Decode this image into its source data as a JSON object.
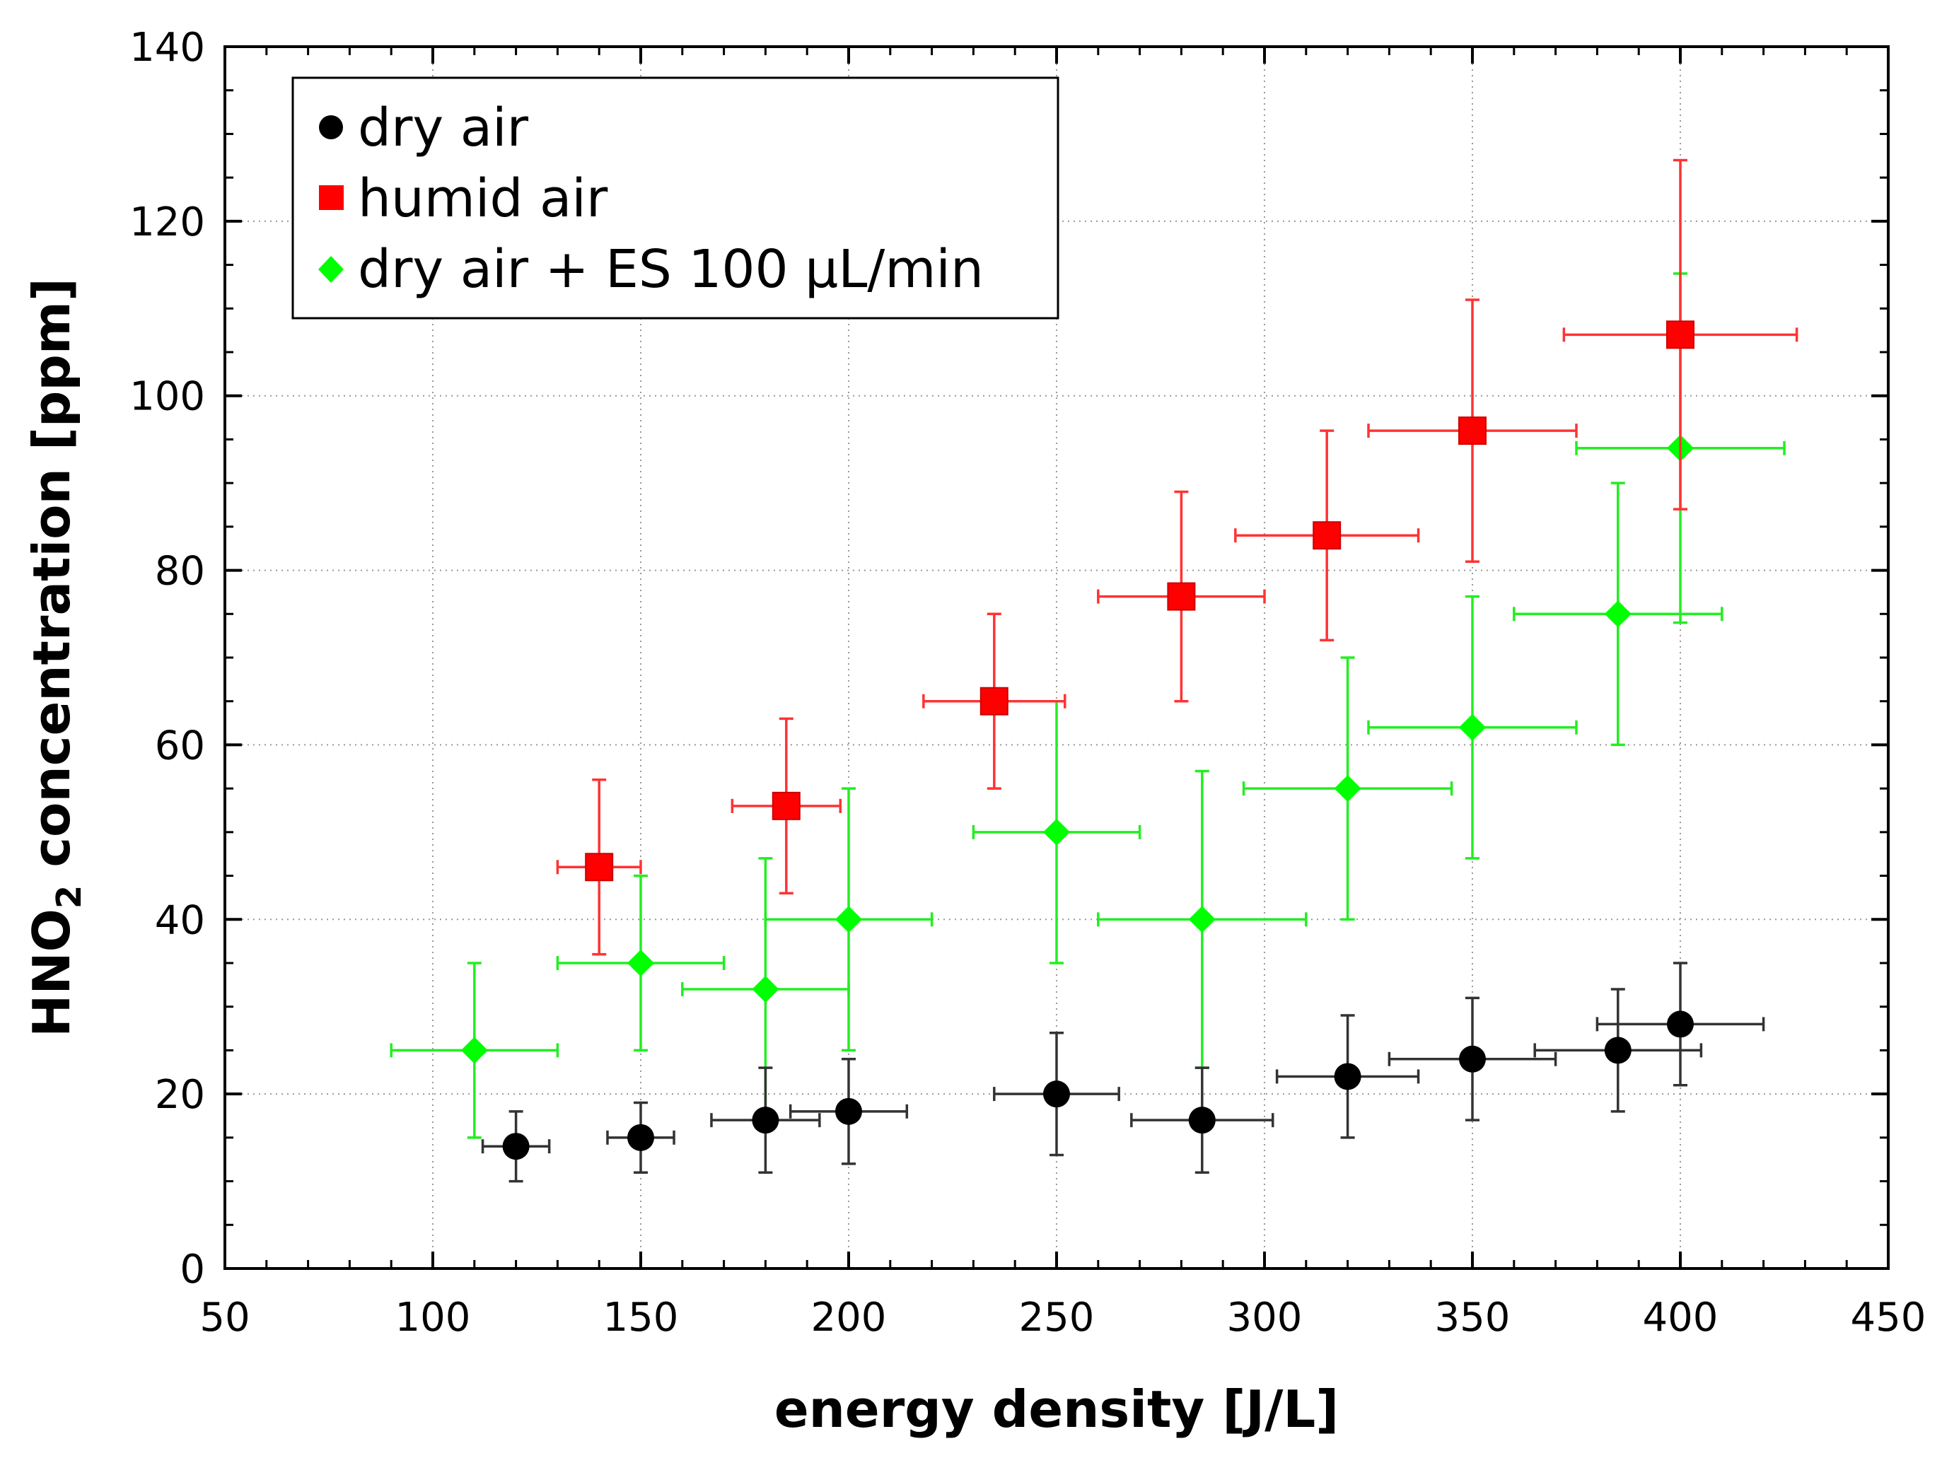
{
  "chart_data": {
    "type": "scatter",
    "title": "",
    "xlabel": "energy density [J/L]",
    "ylabel_parts": [
      "HNO",
      "2",
      " concentration [ppm]"
    ],
    "xlim": [
      50,
      450
    ],
    "ylim": [
      0,
      140
    ],
    "xticks": [
      50,
      100,
      150,
      200,
      250,
      300,
      350,
      400,
      450
    ],
    "yticks": [
      0,
      20,
      40,
      60,
      80,
      100,
      120,
      140
    ],
    "x_minor_step": 10,
    "y_minor_step": 5,
    "grid": true,
    "legend_position": "top-left",
    "series": [
      {
        "name": "dry air",
        "marker": "circle",
        "color": "#000000",
        "error_color": "#333333",
        "points": [
          {
            "x": 120,
            "y": 14,
            "xerr": 8,
            "yerr": 4
          },
          {
            "x": 150,
            "y": 15,
            "xerr": 8,
            "yerr": 4
          },
          {
            "x": 180,
            "y": 17,
            "xerr": 13,
            "yerr": 6
          },
          {
            "x": 200,
            "y": 18,
            "xerr": 14,
            "yerr": 6
          },
          {
            "x": 250,
            "y": 20,
            "xerr": 15,
            "yerr": 7
          },
          {
            "x": 285,
            "y": 17,
            "xerr": 17,
            "yerr": 6
          },
          {
            "x": 320,
            "y": 22,
            "xerr": 17,
            "yerr": 7
          },
          {
            "x": 350,
            "y": 24,
            "xerr": 20,
            "yerr": 7
          },
          {
            "x": 385,
            "y": 25,
            "xerr": 20,
            "yerr": 7
          },
          {
            "x": 400,
            "y": 28,
            "xerr": 20,
            "yerr": 7
          }
        ]
      },
      {
        "name": "humid air",
        "marker": "square",
        "color": "#ff0000",
        "error_color": "#ff3333",
        "points": [
          {
            "x": 140,
            "y": 46,
            "xerr": 10,
            "yerr": 10
          },
          {
            "x": 185,
            "y": 53,
            "xerr": 13,
            "yerr": 10
          },
          {
            "x": 235,
            "y": 65,
            "xerr": 17,
            "yerr": 10
          },
          {
            "x": 280,
            "y": 77,
            "xerr": 20,
            "yerr": 12
          },
          {
            "x": 315,
            "y": 84,
            "xerr": 22,
            "yerr": 12
          },
          {
            "x": 350,
            "y": 96,
            "xerr": 25,
            "yerr": 15
          },
          {
            "x": 400,
            "y": 107,
            "xerr": 28,
            "yerr": 20
          }
        ]
      },
      {
        "name": "dry air + ES 100 µL/min",
        "marker": "diamond",
        "color": "#00ff00",
        "error_color": "#22ee22",
        "points": [
          {
            "x": 110,
            "y": 25,
            "xerr": 20,
            "yerr": 10
          },
          {
            "x": 150,
            "y": 35,
            "xerr": 20,
            "yerr": 10
          },
          {
            "x": 180,
            "y": 32,
            "xerr": 20,
            "yerr": 15
          },
          {
            "x": 200,
            "y": 40,
            "xerr": 20,
            "yerr": 15
          },
          {
            "x": 250,
            "y": 50,
            "xerr": 20,
            "yerr": 15
          },
          {
            "x": 285,
            "y": 40,
            "xerr": 25,
            "yerr": 17
          },
          {
            "x": 320,
            "y": 55,
            "xerr": 25,
            "yerr": 15
          },
          {
            "x": 350,
            "y": 62,
            "xerr": 25,
            "yerr": 15
          },
          {
            "x": 385,
            "y": 75,
            "xerr": 25,
            "yerr": 15
          },
          {
            "x": 400,
            "y": 94,
            "xerr": 25,
            "yerr": 20
          }
        ]
      }
    ]
  }
}
